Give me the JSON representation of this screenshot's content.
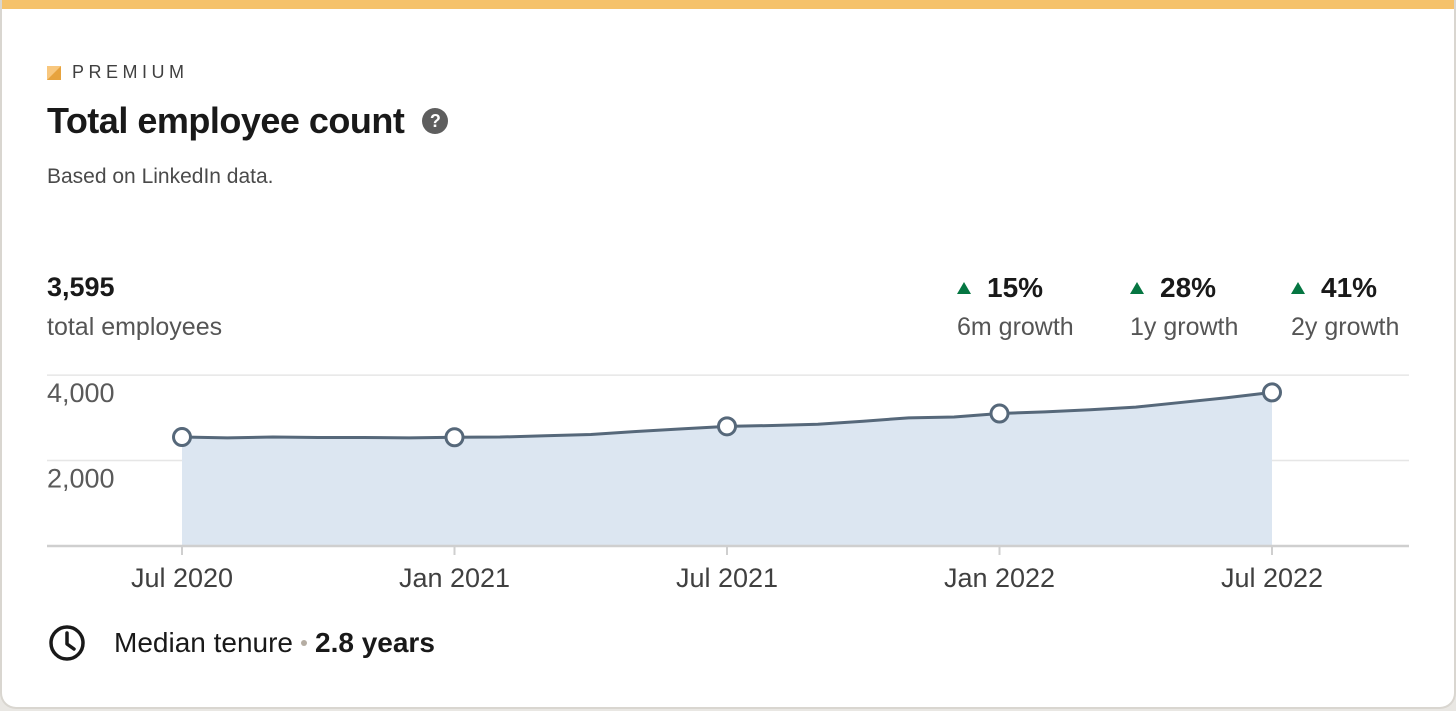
{
  "badge": {
    "label": "PREMIUM"
  },
  "header": {
    "title": "Total employee count",
    "subtitle": "Based on LinkedIn data."
  },
  "summary": {
    "total_value": "3,595",
    "total_label": "total employees",
    "growth": [
      {
        "value": "15%",
        "label": "6m growth"
      },
      {
        "value": "28%",
        "label": "1y growth"
      },
      {
        "value": "41%",
        "label": "2y growth"
      }
    ]
  },
  "footer": {
    "tenure_label": "Median tenure",
    "tenure_value": "2.8 years"
  },
  "colors": {
    "accent_bar": "#f5c26b",
    "line": "#56687a",
    "area_fill": "#dce6f1",
    "growth_up": "#057642"
  },
  "icons": [
    "premium-badge-icon",
    "help-icon",
    "up-triangle-icon",
    "clock-icon"
  ],
  "chart_data": {
    "type": "area",
    "x": [
      "Jul 2020",
      "Aug 2020",
      "Sep 2020",
      "Oct 2020",
      "Nov 2020",
      "Dec 2020",
      "Jan 2021",
      "Feb 2021",
      "Mar 2021",
      "Apr 2021",
      "May 2021",
      "Jun 2021",
      "Jul 2021",
      "Aug 2021",
      "Sep 2021",
      "Oct 2021",
      "Nov 2021",
      "Dec 2021",
      "Jan 2022",
      "Feb 2022",
      "Mar 2022",
      "Apr 2022",
      "May 2022",
      "Jun 2022",
      "Jul 2022"
    ],
    "series": [
      {
        "values": [
          2550,
          2530,
          2550,
          2540,
          2540,
          2530,
          2545,
          2550,
          2580,
          2610,
          2680,
          2740,
          2800,
          2820,
          2850,
          2920,
          3000,
          3020,
          3100,
          3140,
          3190,
          3250,
          3360,
          3470,
          3595
        ],
        "markers": [
          0,
          6,
          12,
          18,
          24
        ]
      }
    ],
    "xticks": [
      "Jul 2020",
      "Jan 2021",
      "Jul 2021",
      "Jan 2022",
      "Jul 2022"
    ],
    "yticks": [
      4000,
      2000
    ],
    "ytick_labels": [
      "4,000",
      "2,000"
    ],
    "ylim": [
      0,
      4400
    ],
    "grid": true
  }
}
